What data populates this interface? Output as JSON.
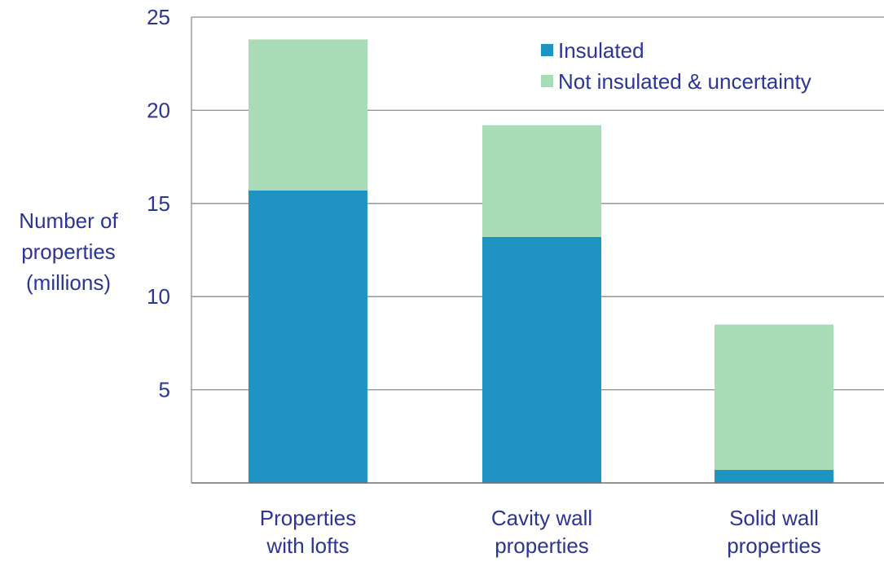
{
  "colors": {
    "insulated": "#1f93c1",
    "not_insulated": "#a9dcb6",
    "text": "#2b3592",
    "grid": "#8c8c8c"
  },
  "chart_data": {
    "type": "bar",
    "stacked": true,
    "title": "",
    "ylabel": [
      "Number of",
      "properties",
      "(millions)"
    ],
    "xlabel": "",
    "categories": [
      [
        "Properties",
        "with lofts"
      ],
      [
        "Cavity wall",
        "properties"
      ],
      [
        "Solid wall",
        "properties"
      ]
    ],
    "series": [
      {
        "name": "Insulated",
        "values": [
          15.7,
          13.2,
          0.7
        ]
      },
      {
        "name": "Not insulated & uncertainty",
        "values": [
          8.1,
          6.0,
          7.8
        ]
      }
    ],
    "ylim": [
      0,
      25
    ],
    "yticks": [
      5,
      10,
      15,
      20,
      25
    ],
    "grid": true,
    "legend_position": "top-right"
  }
}
